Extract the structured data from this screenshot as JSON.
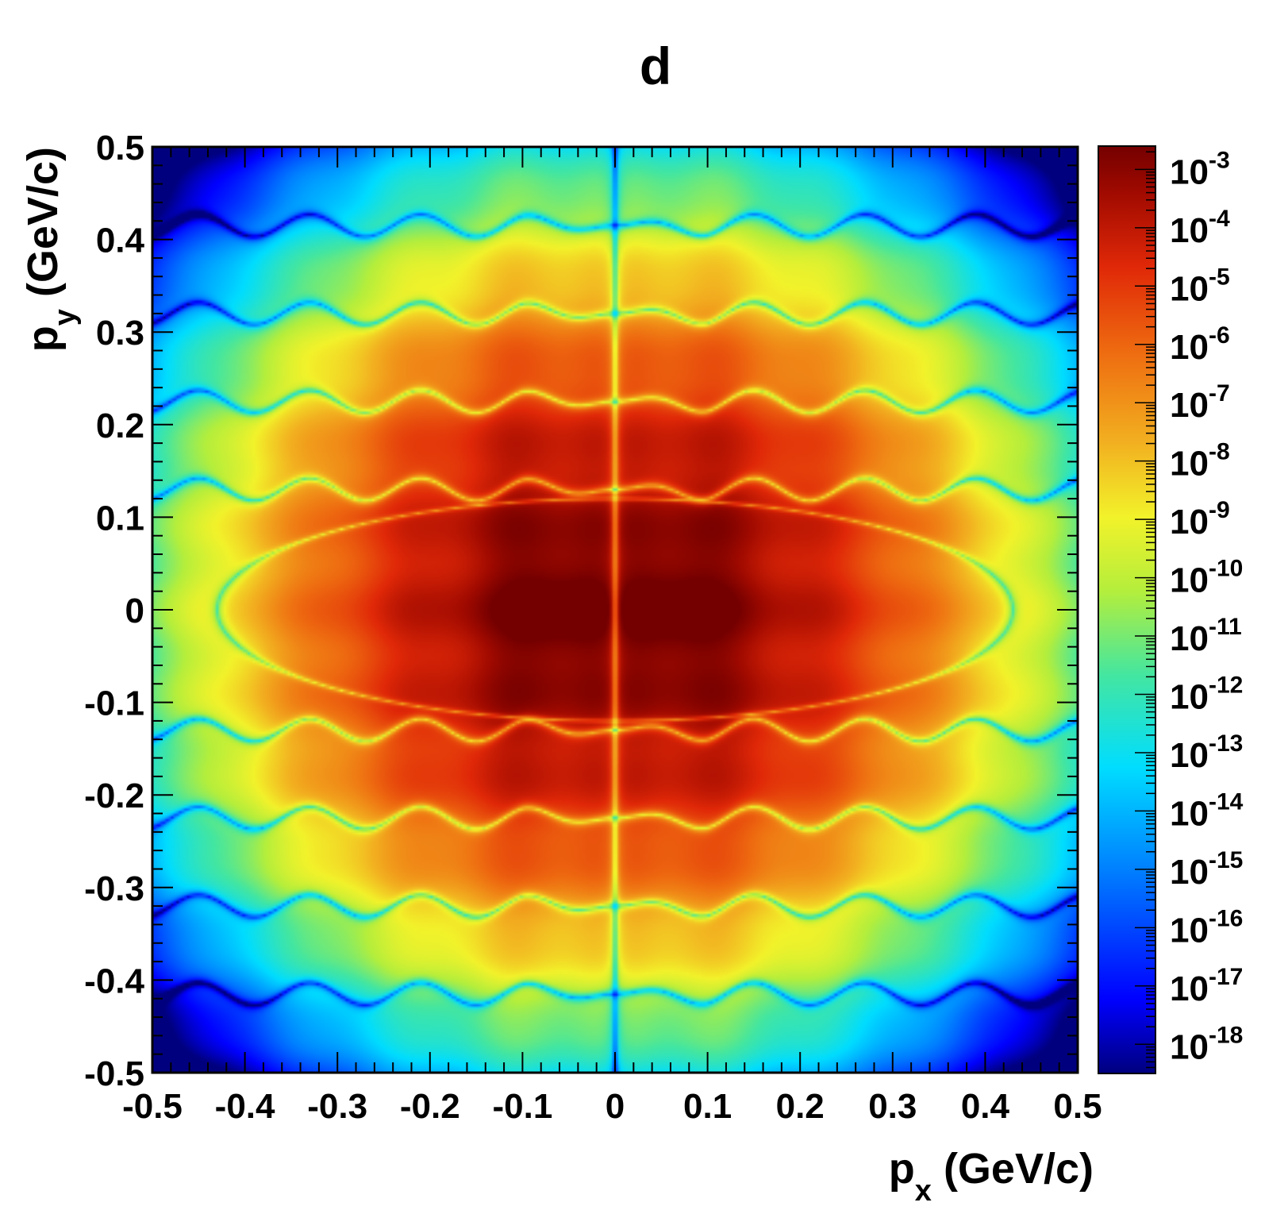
{
  "chart_data": {
    "type": "heatmap",
    "title": "d",
    "xlabel": {
      "base": "p",
      "sub": "x",
      "unit": " (GeV/c)"
    },
    "ylabel": {
      "base": "p",
      "sub": "y",
      "unit": " (GeV/c)"
    },
    "xlim": [
      -0.5,
      0.5
    ],
    "ylim": [
      -0.5,
      0.5
    ],
    "x_ticks": [
      -0.5,
      -0.4,
      -0.3,
      -0.2,
      -0.1,
      0,
      0.1,
      0.2,
      0.3,
      0.4,
      0.5
    ],
    "x_tick_labels": [
      "-0.5",
      "-0.4",
      "-0.3",
      "-0.2",
      "-0.1",
      "0",
      "0.1",
      "0.2",
      "0.3",
      "0.4",
      "0.5"
    ],
    "y_ticks": [
      -0.5,
      -0.4,
      -0.3,
      -0.2,
      -0.1,
      0,
      0.1,
      0.2,
      0.3,
      0.4,
      0.5
    ],
    "y_tick_labels": [
      "-0.5",
      "-0.4",
      "-0.3",
      "-0.2",
      "-0.1",
      "0",
      "0.1",
      "0.2",
      "0.3",
      "0.4",
      "0.5"
    ],
    "z_scale": "log",
    "z_range_exponents": [
      -18.5,
      -2.6
    ],
    "z_tick_exponents": [
      -3,
      -4,
      -5,
      -6,
      -7,
      -8,
      -9,
      -10,
      -11,
      -12,
      -13,
      -14,
      -15,
      -16,
      -17,
      -18
    ],
    "z_tick_labels": [
      {
        "base": "10",
        "exp": "-3"
      },
      {
        "base": "10",
        "exp": "-4"
      },
      {
        "base": "10",
        "exp": "-5"
      },
      {
        "base": "10",
        "exp": "-6"
      },
      {
        "base": "10",
        "exp": "-7"
      },
      {
        "base": "10",
        "exp": "-8"
      },
      {
        "base": "10",
        "exp": "-9"
      },
      {
        "base": "10",
        "exp": "-10"
      },
      {
        "base": "10",
        "exp": "-11"
      },
      {
        "base": "10",
        "exp": "-12"
      },
      {
        "base": "10",
        "exp": "-13"
      },
      {
        "base": "10",
        "exp": "-14"
      },
      {
        "base": "10",
        "exp": "-15"
      },
      {
        "base": "10",
        "exp": "-16"
      },
      {
        "base": "10",
        "exp": "-17"
      },
      {
        "base": "10",
        "exp": "-18"
      }
    ],
    "colormap": "rainbow (dark blue → cyan → green → yellow → orange → red → dark red)",
    "features": {
      "maxima_px": [
        -0.055,
        0.055
      ],
      "maxima_py": 0,
      "peak_value_exponent": -3,
      "node_line_px": 0,
      "horizontal_node_lines_py": [
        0.13,
        0.225,
        0.32,
        0.415,
        -0.13,
        -0.225,
        -0.32,
        -0.415
      ],
      "outer_boundary_px": 0.43,
      "symmetry": "mirror symmetric in px and py"
    }
  },
  "colors": {
    "c0": "#00007f",
    "c1": "#0000ff",
    "c2": "#0080ff",
    "c3": "#00ddff",
    "c4": "#44e6a0",
    "c5": "#b4ee3c",
    "c6": "#f2f22a",
    "c7": "#f2b020",
    "c8": "#ee6a10",
    "c9": "#e02808",
    "c10": "#a00a00",
    "c11": "#740000"
  }
}
